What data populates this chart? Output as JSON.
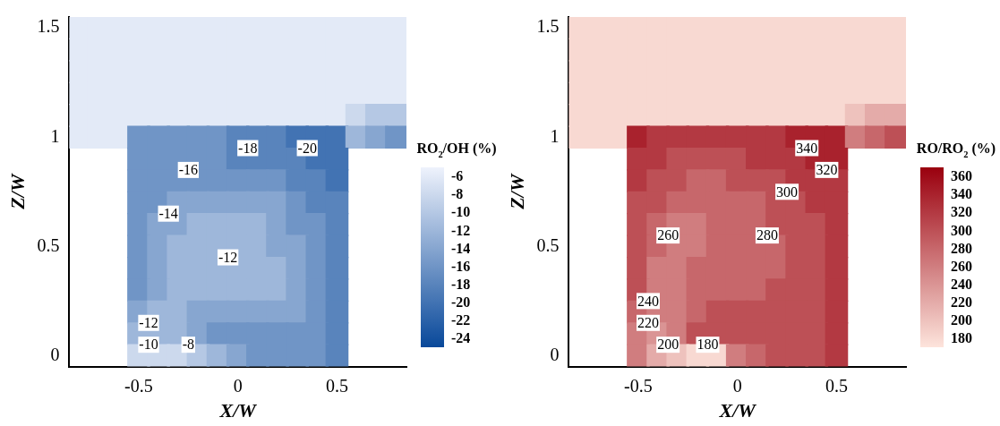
{
  "chart_data": [
    {
      "type": "heatmap",
      "xlabel": "X/W",
      "ylabel": "Z/W",
      "clabel": "RO$_{2}$/OH (%)",
      "clim": [
        -25,
        -5
      ],
      "cticks": [
        -24,
        -22,
        -20,
        -18,
        -16,
        -14,
        -12,
        -10,
        -8,
        -6
      ],
      "colors": [
        "#08489a",
        "#eef2fc"
      ],
      "categories": [
        null,
        null,
        null,
        "-0.5",
        null,
        null,
        null,
        null,
        "0",
        null,
        null,
        null,
        null,
        "0.5",
        null,
        null,
        null
      ],
      "y_categories": [
        "1.5",
        null,
        null,
        null,
        null,
        "1",
        null,
        null,
        null,
        null,
        "0.5",
        null,
        null,
        null,
        null,
        "0"
      ],
      "cells": [
        [
          -6,
          -6,
          -6,
          -6,
          -6,
          -6,
          -6,
          -6,
          -6,
          -6,
          -6,
          -6,
          -6,
          -6,
          -6,
          -6,
          -6
        ],
        [
          -6,
          -6,
          -6,
          -6,
          -6,
          -6,
          -6,
          -6,
          -6,
          -6,
          -6,
          -6,
          -6,
          -6,
          -6,
          -6,
          -6
        ],
        [
          -6,
          -6,
          -6,
          -6,
          -6,
          -6,
          -6,
          -6,
          -6,
          -6,
          -6,
          -6,
          -6,
          -6,
          -6,
          -6,
          -6
        ],
        [
          -6,
          -6,
          -6,
          -6,
          -6,
          -6,
          -6,
          -6,
          -6,
          -6,
          -6,
          -6,
          -6,
          -6,
          -6,
          -6,
          -6
        ],
        [
          -6,
          -6,
          -6,
          -6,
          -6,
          -6,
          -6,
          -6,
          -6,
          -6,
          -6,
          -6,
          -6,
          -6,
          -8,
          -10,
          -10
        ],
        [
          -6,
          -6,
          -6,
          -16,
          -16,
          -16,
          -16,
          -16,
          -18,
          -18,
          -18,
          -20,
          -20,
          -20,
          -12,
          -14,
          -16
        ],
        [
          null,
          null,
          null,
          -16,
          -16,
          -16,
          -16,
          -16,
          -18,
          -18,
          -18,
          -18,
          -20,
          -20,
          null,
          null,
          null
        ],
        [
          null,
          null,
          null,
          -16,
          -16,
          -16,
          -16,
          -16,
          -16,
          -16,
          -16,
          -18,
          -18,
          -20,
          null,
          null,
          null
        ],
        [
          null,
          null,
          null,
          -16,
          -16,
          -14,
          -14,
          -14,
          -14,
          -14,
          -14,
          -16,
          -18,
          -18,
          null,
          null,
          null
        ],
        [
          null,
          null,
          null,
          -16,
          -14,
          -14,
          -12,
          -12,
          -12,
          -12,
          -14,
          -16,
          -16,
          -18,
          null,
          null,
          null
        ],
        [
          null,
          null,
          null,
          -16,
          -14,
          -12,
          -12,
          -12,
          -12,
          -12,
          -14,
          -14,
          -16,
          -18,
          null,
          null,
          null
        ],
        [
          null,
          null,
          null,
          -16,
          -14,
          -12,
          -12,
          -12,
          -12,
          -12,
          -12,
          -14,
          -16,
          -18,
          null,
          null,
          null
        ],
        [
          null,
          null,
          null,
          -16,
          -14,
          -12,
          -12,
          -12,
          -12,
          -12,
          -12,
          -14,
          -16,
          -18,
          null,
          null,
          null
        ],
        [
          null,
          null,
          null,
          -14,
          -12,
          -12,
          -14,
          -14,
          -14,
          -14,
          -14,
          -14,
          -16,
          -18,
          null,
          null,
          null
        ],
        [
          null,
          null,
          null,
          -12,
          -12,
          -12,
          -14,
          -16,
          -16,
          -16,
          -16,
          -16,
          -16,
          -18,
          null,
          null,
          null
        ],
        [
          null,
          null,
          null,
          -8,
          -8,
          -8,
          -10,
          -12,
          -14,
          -16,
          -16,
          -16,
          -16,
          -18,
          null,
          null,
          null
        ]
      ],
      "annotations": [
        "-18",
        "-20",
        "-16",
        "-14",
        "-12",
        "-12",
        "-10",
        "-8"
      ]
    },
    {
      "type": "heatmap",
      "xlabel": "X/W",
      "ylabel": "Z/W",
      "clabel": "RO/RO$_{2}$ (%)",
      "clim": [
        170,
        370
      ],
      "cticks": [
        180,
        200,
        220,
        240,
        260,
        280,
        300,
        320,
        340,
        360
      ],
      "colors": [
        "#fde4dc",
        "#9a000e"
      ],
      "categories": [
        null,
        null,
        null,
        "-0.5",
        null,
        null,
        null,
        null,
        "0",
        null,
        null,
        null,
        null,
        "0.5",
        null,
        null,
        null
      ],
      "y_categories": [
        "1.5",
        null,
        null,
        null,
        null,
        "1",
        null,
        null,
        null,
        null,
        "0.5",
        null,
        null,
        null,
        null,
        "0"
      ],
      "cells": [
        [
          180,
          180,
          180,
          180,
          180,
          180,
          180,
          180,
          180,
          180,
          180,
          180,
          180,
          180,
          180,
          180,
          180
        ],
        [
          180,
          180,
          180,
          180,
          180,
          180,
          180,
          180,
          180,
          180,
          180,
          180,
          180,
          180,
          180,
          180,
          180
        ],
        [
          180,
          180,
          180,
          180,
          180,
          180,
          180,
          180,
          180,
          180,
          180,
          180,
          180,
          180,
          180,
          180,
          180
        ],
        [
          180,
          180,
          180,
          180,
          180,
          180,
          180,
          180,
          180,
          180,
          180,
          180,
          180,
          180,
          180,
          180,
          180
        ],
        [
          180,
          180,
          180,
          180,
          180,
          180,
          180,
          180,
          180,
          180,
          180,
          180,
          180,
          180,
          200,
          220,
          220
        ],
        [
          180,
          180,
          180,
          340,
          320,
          320,
          320,
          320,
          320,
          320,
          320,
          340,
          340,
          340,
          260,
          280,
          300
        ],
        [
          null,
          null,
          null,
          320,
          320,
          300,
          300,
          300,
          300,
          320,
          320,
          320,
          340,
          340,
          null,
          null,
          null
        ],
        [
          null,
          null,
          null,
          320,
          300,
          300,
          280,
          280,
          300,
          300,
          300,
          320,
          320,
          320,
          null,
          null,
          null
        ],
        [
          null,
          null,
          null,
          300,
          300,
          280,
          280,
          280,
          280,
          280,
          300,
          300,
          320,
          320,
          null,
          null,
          null
        ],
        [
          null,
          null,
          null,
          300,
          280,
          260,
          260,
          280,
          280,
          280,
          300,
          300,
          300,
          320,
          null,
          null,
          null
        ],
        [
          null,
          null,
          null,
          300,
          280,
          260,
          260,
          280,
          280,
          280,
          280,
          300,
          300,
          320,
          null,
          null,
          null
        ],
        [
          null,
          null,
          null,
          300,
          260,
          260,
          280,
          280,
          280,
          280,
          280,
          300,
          300,
          320,
          null,
          null,
          null
        ],
        [
          null,
          null,
          null,
          300,
          260,
          260,
          280,
          280,
          280,
          280,
          300,
          300,
          300,
          320,
          null,
          null,
          null
        ],
        [
          null,
          null,
          null,
          280,
          260,
          260,
          280,
          300,
          300,
          300,
          300,
          300,
          300,
          320,
          null,
          null,
          null
        ],
        [
          null,
          null,
          null,
          260,
          240,
          260,
          300,
          300,
          300,
          300,
          300,
          300,
          300,
          320,
          null,
          null,
          null
        ],
        [
          null,
          null,
          null,
          260,
          220,
          200,
          180,
          180,
          260,
          280,
          300,
          300,
          300,
          320,
          null,
          null,
          null
        ]
      ],
      "annotations": [
        "340",
        "320",
        "300",
        "280",
        "260",
        "240",
        "220",
        "200",
        "180"
      ]
    }
  ]
}
